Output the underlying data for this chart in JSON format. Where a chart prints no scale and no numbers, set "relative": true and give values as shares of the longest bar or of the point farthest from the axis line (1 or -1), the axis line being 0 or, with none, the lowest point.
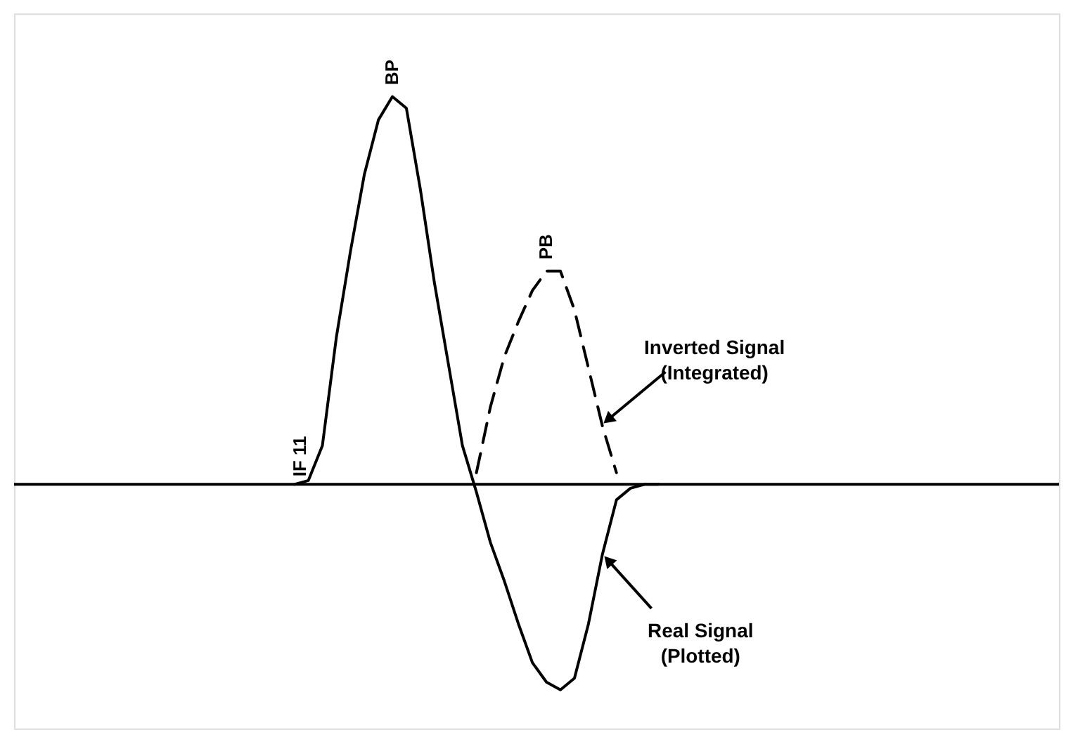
{
  "chart_data": {
    "type": "line",
    "relative": true,
    "categories": [
      null,
      null,
      null,
      null,
      null,
      null,
      null,
      null,
      null,
      null,
      null,
      null,
      null,
      null,
      null,
      null,
      null,
      null,
      null,
      null,
      null,
      null,
      null,
      null,
      null,
      null,
      null
    ],
    "series": [
      {
        "color": "#000000",
        "line_style": "solid",
        "values": [
          0,
          0.01,
          0.1,
          0.38,
          0.6,
          0.8,
          0.94,
          1,
          0.97,
          0.76,
          0.52,
          0.31,
          0.1,
          -0.02,
          -0.15,
          -0.25,
          -0.36,
          -0.46,
          -0.51,
          -0.53,
          -0.5,
          -0.36,
          -0.18,
          -0.04,
          -0.01,
          0,
          0
        ]
      },
      {
        "color": "#000000",
        "line_style": "dashed",
        "values": [
          null,
          null,
          null,
          null,
          null,
          null,
          null,
          null,
          null,
          null,
          null,
          null,
          null,
          0.03,
          0.2,
          0.33,
          0.42,
          0.5,
          0.55,
          0.55,
          0.45,
          0.3,
          0.15,
          0.03,
          null,
          null,
          null
        ]
      }
    ],
    "annotations": [
      "BP",
      "PB",
      "IF 11",
      "Inverted Signal\n(Integrated)",
      "Real Signal\n(Plotted)"
    ],
    "grid": false,
    "marker": "none"
  }
}
